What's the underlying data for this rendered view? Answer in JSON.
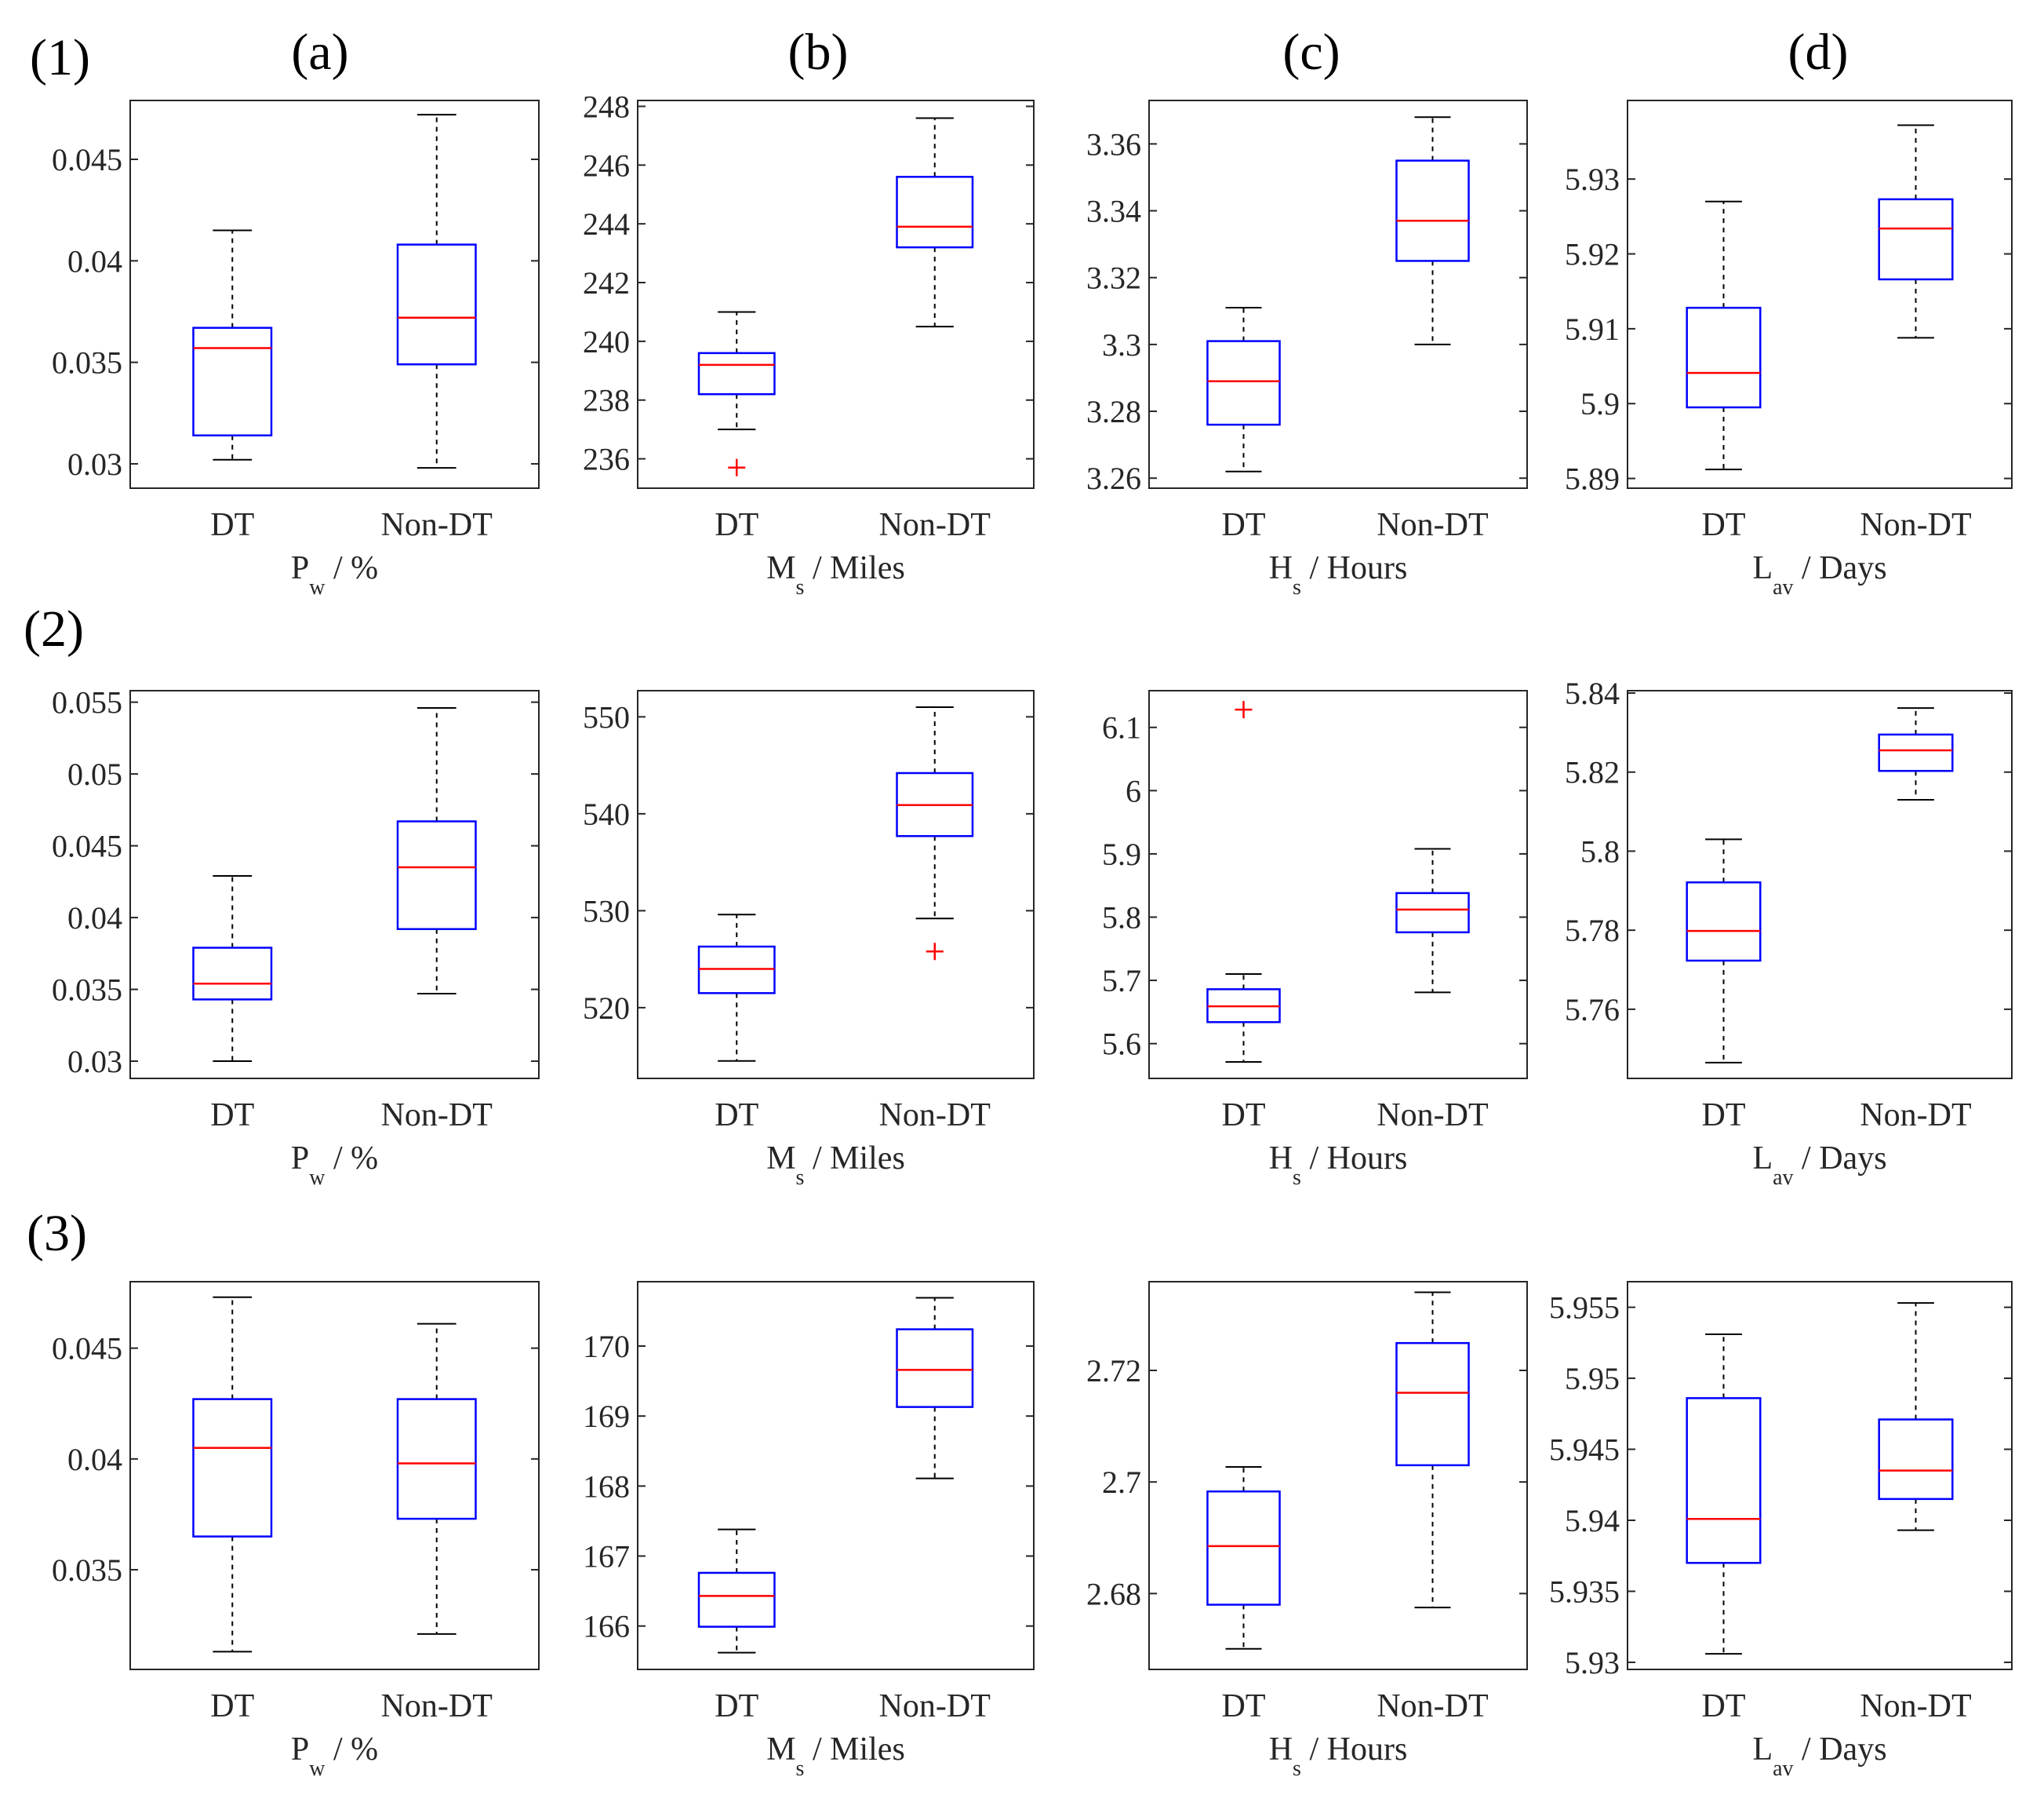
{
  "figure": {
    "row_labels": [
      "(1)",
      "(2)",
      "(3)"
    ],
    "col_labels": [
      "(a)",
      "(b)",
      "(c)",
      "(d)"
    ]
  },
  "axis_labels": [
    {
      "base": "P",
      "sub": "w",
      "rest": " / %"
    },
    {
      "base": "M",
      "sub": "s",
      "rest": " / Miles"
    },
    {
      "base": "H",
      "sub": "s",
      "rest": " / Hours"
    },
    {
      "base": "L",
      "sub": "av",
      "rest": " / Days"
    }
  ],
  "colors": {
    "box": "#0000ff",
    "median": "#ff0000",
    "whisker": "#000000",
    "axis": "#262626"
  },
  "chart_data": [
    {
      "type": "box",
      "row": 1,
      "col": "a",
      "categories": [
        "DT",
        "Non-DT"
      ],
      "ylim": [
        0.0288,
        0.0479
      ],
      "yticks": [
        0.03,
        0.035,
        0.04,
        0.045
      ],
      "ytick_labels": [
        "0.03",
        "0.035",
        "0.04",
        "0.045"
      ],
      "boxes": [
        {
          "whislo": 0.0302,
          "q1": 0.0314,
          "med": 0.0357,
          "q3": 0.0367,
          "whishi": 0.0415,
          "fliers": []
        },
        {
          "whislo": 0.0298,
          "q1": 0.0349,
          "med": 0.0372,
          "q3": 0.0408,
          "whishi": 0.0472,
          "fliers": []
        }
      ]
    },
    {
      "type": "box",
      "row": 1,
      "col": "b",
      "categories": [
        "DT",
        "Non-DT"
      ],
      "ylim": [
        235.0,
        248.2
      ],
      "yticks": [
        236,
        238,
        240,
        242,
        244,
        246,
        248
      ],
      "ytick_labels": [
        "236",
        "238",
        "240",
        "242",
        "244",
        "246",
        "248"
      ],
      "boxes": [
        {
          "whislo": 237.0,
          "q1": 238.2,
          "med": 239.2,
          "q3": 239.6,
          "whishi": 241.0,
          "fliers": [
            235.7
          ]
        },
        {
          "whislo": 240.5,
          "q1": 243.2,
          "med": 243.9,
          "q3": 245.6,
          "whishi": 247.6,
          "fliers": []
        }
      ]
    },
    {
      "type": "box",
      "row": 1,
      "col": "c",
      "categories": [
        "DT",
        "Non-DT"
      ],
      "ylim": [
        3.257,
        3.373
      ],
      "yticks": [
        3.26,
        3.28,
        3.3,
        3.32,
        3.34,
        3.36
      ],
      "ytick_labels": [
        "3.26",
        "3.28",
        "3.3",
        "3.32",
        "3.34",
        "3.36"
      ],
      "boxes": [
        {
          "whislo": 3.262,
          "q1": 3.276,
          "med": 3.289,
          "q3": 3.301,
          "whishi": 3.311,
          "fliers": []
        },
        {
          "whislo": 3.3,
          "q1": 3.325,
          "med": 3.337,
          "q3": 3.355,
          "whishi": 3.368,
          "fliers": []
        }
      ]
    },
    {
      "type": "box",
      "row": 1,
      "col": "d",
      "categories": [
        "DT",
        "Non-DT"
      ],
      "ylim": [
        5.8887,
        5.9405
      ],
      "yticks": [
        5.89,
        5.9,
        5.91,
        5.92,
        5.93
      ],
      "ytick_labels": [
        "5.89",
        "5.9",
        "5.91",
        "5.92",
        "5.93"
      ],
      "boxes": [
        {
          "whislo": 5.8912,
          "q1": 5.8995,
          "med": 5.9041,
          "q3": 5.9128,
          "whishi": 5.927,
          "fliers": []
        },
        {
          "whislo": 5.9088,
          "q1": 5.9166,
          "med": 5.9234,
          "q3": 5.9273,
          "whishi": 5.9372,
          "fliers": []
        }
      ]
    },
    {
      "type": "box",
      "row": 2,
      "col": "a",
      "categories": [
        "DT",
        "Non-DT"
      ],
      "ylim": [
        0.0288,
        0.0558
      ],
      "yticks": [
        0.03,
        0.035,
        0.04,
        0.045,
        0.05,
        0.055
      ],
      "ytick_labels": [
        "0.03",
        "0.035",
        "0.04",
        "0.045",
        "0.05",
        "0.055"
      ],
      "boxes": [
        {
          "whislo": 0.03,
          "q1": 0.0343,
          "med": 0.0354,
          "q3": 0.0379,
          "whishi": 0.0429,
          "fliers": []
        },
        {
          "whislo": 0.0347,
          "q1": 0.0392,
          "med": 0.0435,
          "q3": 0.0467,
          "whishi": 0.0546,
          "fliers": []
        }
      ]
    },
    {
      "type": "box",
      "row": 2,
      "col": "b",
      "categories": [
        "DT",
        "Non-DT"
      ],
      "ylim": [
        512.7,
        552.7
      ],
      "yticks": [
        520,
        530,
        540,
        550
      ],
      "ytick_labels": [
        "520",
        "530",
        "540",
        "550"
      ],
      "boxes": [
        {
          "whislo": 514.5,
          "q1": 521.5,
          "med": 524.0,
          "q3": 526.3,
          "whishi": 529.6,
          "fliers": []
        },
        {
          "whislo": 529.2,
          "q1": 537.7,
          "med": 540.9,
          "q3": 544.2,
          "whishi": 551.0,
          "fliers": [
            525.8
          ]
        }
      ]
    },
    {
      "type": "box",
      "row": 2,
      "col": "c",
      "categories": [
        "DT",
        "Non-DT"
      ],
      "ylim": [
        5.545,
        6.158
      ],
      "yticks": [
        5.6,
        5.7,
        5.8,
        5.9,
        6.0,
        6.1
      ],
      "ytick_labels": [
        "5.6",
        "5.7",
        "5.8",
        "5.9",
        "6",
        "6.1"
      ],
      "boxes": [
        {
          "whislo": 5.571,
          "q1": 5.634,
          "med": 5.659,
          "q3": 5.686,
          "whishi": 5.71,
          "fliers": [
            6.128
          ]
        },
        {
          "whislo": 5.681,
          "q1": 5.776,
          "med": 5.812,
          "q3": 5.838,
          "whishi": 5.908,
          "fliers": []
        }
      ]
    },
    {
      "type": "box",
      "row": 2,
      "col": "d",
      "categories": [
        "DT",
        "Non-DT"
      ],
      "ylim": [
        5.7425,
        5.8406
      ],
      "yticks": [
        5.76,
        5.78,
        5.8,
        5.82,
        5.84
      ],
      "ytick_labels": [
        "5.76",
        "5.78",
        "5.8",
        "5.82",
        "5.84"
      ],
      "boxes": [
        {
          "whislo": 5.7465,
          "q1": 5.7723,
          "med": 5.7798,
          "q3": 5.7921,
          "whishi": 5.803,
          "fliers": []
        },
        {
          "whislo": 5.813,
          "q1": 5.8203,
          "med": 5.8255,
          "q3": 5.8295,
          "whishi": 5.8362,
          "fliers": []
        }
      ]
    },
    {
      "type": "box",
      "row": 3,
      "col": "a",
      "categories": [
        "DT",
        "Non-DT"
      ],
      "ylim": [
        0.0305,
        0.048
      ],
      "yticks": [
        0.035,
        0.04,
        0.045
      ],
      "ytick_labels": [
        "0.035",
        "0.04",
        "0.045"
      ],
      "boxes": [
        {
          "whislo": 0.0313,
          "q1": 0.0365,
          "med": 0.0405,
          "q3": 0.0427,
          "whishi": 0.0473,
          "fliers": []
        },
        {
          "whislo": 0.0321,
          "q1": 0.0373,
          "med": 0.0398,
          "q3": 0.0427,
          "whishi": 0.0461,
          "fliers": []
        }
      ]
    },
    {
      "type": "box",
      "row": 3,
      "col": "b",
      "categories": [
        "DT",
        "Non-DT"
      ],
      "ylim": [
        165.38,
        170.92
      ],
      "yticks": [
        166,
        167,
        168,
        169,
        170
      ],
      "ytick_labels": [
        "166",
        "167",
        "168",
        "169",
        "170"
      ],
      "boxes": [
        {
          "whislo": 165.62,
          "q1": 165.99,
          "med": 166.43,
          "q3": 166.76,
          "whishi": 167.38,
          "fliers": []
        },
        {
          "whislo": 168.11,
          "q1": 169.13,
          "med": 169.66,
          "q3": 170.24,
          "whishi": 170.69,
          "fliers": []
        }
      ]
    },
    {
      "type": "box",
      "row": 3,
      "col": "c",
      "categories": [
        "DT",
        "Non-DT"
      ],
      "ylim": [
        2.6664,
        2.7359
      ],
      "yticks": [
        2.68,
        2.7,
        2.72
      ],
      "ytick_labels": [
        "2.68",
        "2.7",
        "2.72"
      ],
      "boxes": [
        {
          "whislo": 2.6701,
          "q1": 2.678,
          "med": 2.6885,
          "q3": 2.6983,
          "whishi": 2.7027,
          "fliers": []
        },
        {
          "whislo": 2.6775,
          "q1": 2.703,
          "med": 2.716,
          "q3": 2.7249,
          "whishi": 2.734,
          "fliers": []
        }
      ]
    },
    {
      "type": "box",
      "row": 3,
      "col": "d",
      "categories": [
        "DT",
        "Non-DT"
      ],
      "ylim": [
        5.9295,
        5.9568
      ],
      "yticks": [
        5.93,
        5.935,
        5.94,
        5.945,
        5.95,
        5.955
      ],
      "ytick_labels": [
        "5.93",
        "5.935",
        "5.94",
        "5.945",
        "5.95",
        "5.955"
      ],
      "boxes": [
        {
          "whislo": 5.9306,
          "q1": 5.937,
          "med": 5.9401,
          "q3": 5.9486,
          "whishi": 5.9531,
          "fliers": []
        },
        {
          "whislo": 5.9393,
          "q1": 5.9415,
          "med": 5.9435,
          "q3": 5.9471,
          "whishi": 5.9553,
          "fliers": []
        }
      ]
    }
  ]
}
